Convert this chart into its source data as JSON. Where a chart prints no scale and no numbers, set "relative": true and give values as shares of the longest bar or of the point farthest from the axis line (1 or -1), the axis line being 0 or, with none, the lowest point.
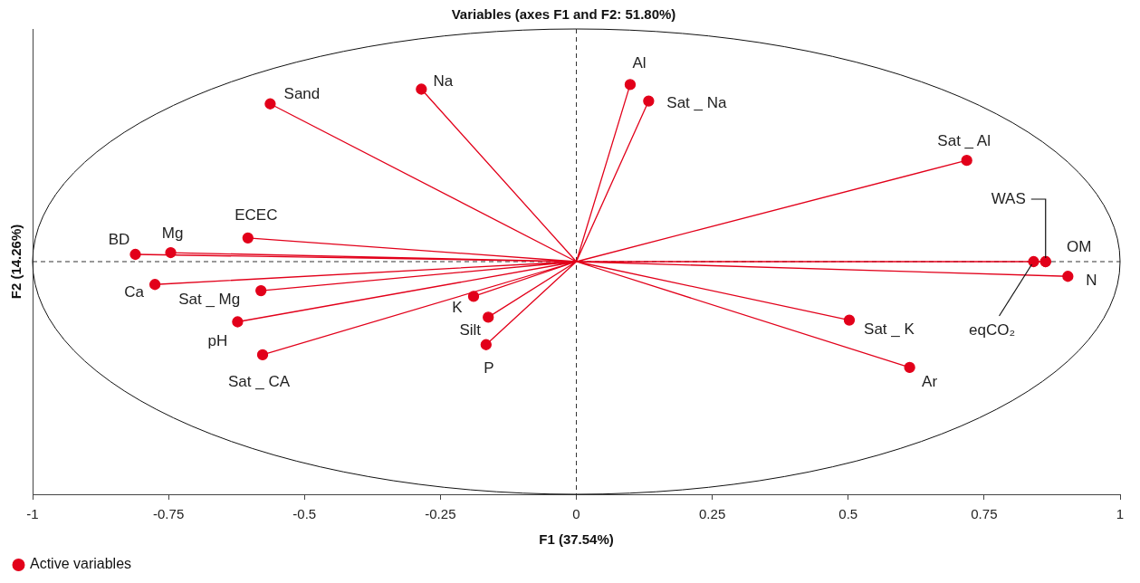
{
  "chart_data": {
    "type": "scatter",
    "title": "Variables (axes F1 and F2: 51.80%)",
    "xlabel": "F1 (37.54%)",
    "ylabel": "F2 (14.26%)",
    "relative": true,
    "series": [
      {
        "name": "Active variables",
        "color": "#e2001a",
        "x": [
          -0.563,
          -0.285,
          0.099,
          0.133,
          0.718,
          0.863,
          0.863,
          0.904,
          0.841,
          0.502,
          0.613,
          -0.166,
          -0.162,
          -0.189,
          -0.577,
          -0.623,
          -0.58,
          -0.775,
          -0.811,
          -0.746,
          -0.604
        ],
        "values": [
          0.891,
          0.974,
          1,
          0.907,
          0.572,
          0.0,
          0.0,
          -0.083,
          0.0,
          -0.33,
          -0.598,
          -0.469,
          -0.314,
          -0.196,
          -0.526,
          -0.34,
          -0.164,
          -0.129,
          0.041,
          0.051,
          0.134
        ]
      },
      {
        "type": "line",
        "marker": "none",
        "color": "#e2001a",
        "x": [
          0,
          -0.563,
          null,
          0,
          -0.285,
          null,
          0,
          0.099,
          null,
          0,
          0.133,
          null,
          0,
          0.718,
          null,
          0,
          0.863,
          null,
          0,
          0.863,
          null,
          0,
          0.904,
          null,
          0,
          0.841,
          null,
          0,
          0.502,
          null,
          0,
          0.613,
          null,
          0,
          -0.166,
          null,
          0,
          -0.162,
          null,
          0,
          -0.189,
          null,
          0,
          -0.577,
          null,
          0,
          -0.623,
          null,
          0,
          -0.58,
          null,
          0,
          -0.775,
          null,
          0,
          -0.811,
          null,
          0,
          -0.746,
          null,
          0,
          -0.604
        ],
        "values": [
          0,
          0.891,
          null,
          0,
          0.974,
          null,
          0,
          1,
          null,
          0,
          0.907,
          null,
          0,
          0.572,
          null,
          0,
          0.0,
          null,
          0,
          0.0,
          null,
          0,
          -0.083,
          null,
          0,
          0.0,
          null,
          0,
          -0.33,
          null,
          0,
          -0.598,
          null,
          0,
          -0.469,
          null,
          0,
          -0.314,
          null,
          0,
          -0.196,
          null,
          0,
          -0.526,
          null,
          0,
          -0.34,
          null,
          0,
          -0.164,
          null,
          0,
          -0.129,
          null,
          0,
          0.041,
          null,
          0,
          0.051,
          null,
          0,
          0.134
        ]
      }
    ],
    "annotations": [
      {
        "text": "Sand",
        "x": -0.563,
        "y": 0.891
      },
      {
        "text": "Na",
        "x": -0.285,
        "y": 0.974
      },
      {
        "text": "Al",
        "x": 0.099,
        "y": 1
      },
      {
        "text": "Sat _ Na",
        "x": 0.133,
        "y": 0.907
      },
      {
        "text": "Sat _ Al",
        "x": 0.718,
        "y": 0.572
      },
      {
        "text": "WAS",
        "x": 0.863,
        "y": 0.0
      },
      {
        "text": "OM",
        "x": 0.863,
        "y": 0.0
      },
      {
        "text": "N",
        "x": 0.904,
        "y": -0.083
      },
      {
        "text": "eqCO₂",
        "x": 0.841,
        "y": 0.0
      },
      {
        "text": "Sat _ K",
        "x": 0.502,
        "y": -0.33
      },
      {
        "text": "Ar",
        "x": 0.613,
        "y": -0.598
      },
      {
        "text": "P",
        "x": -0.166,
        "y": -0.469
      },
      {
        "text": "Silt",
        "x": -0.162,
        "y": -0.314
      },
      {
        "text": "K",
        "x": -0.189,
        "y": -0.196
      },
      {
        "text": "Sat _ CA",
        "x": -0.577,
        "y": -0.526
      },
      {
        "text": "pH",
        "x": -0.623,
        "y": -0.34
      },
      {
        "text": "Sat _ Mg",
        "x": -0.58,
        "y": -0.164
      },
      {
        "text": "Ca",
        "x": -0.775,
        "y": -0.129
      },
      {
        "text": "BD",
        "x": -0.811,
        "y": 0.041
      },
      {
        "text": "Mg",
        "x": -0.746,
        "y": 0.051
      },
      {
        "text": "ECEC",
        "x": -0.604,
        "y": 0.134
      }
    ],
    "xlim": [
      -1,
      1
    ],
    "xticks": [
      -1,
      -0.75,
      -0.5,
      -0.25,
      0,
      0.25,
      0.5,
      0.75,
      1
    ],
    "ref_lines": [
      {
        "axis": "x",
        "value": 0,
        "color": "#333333",
        "line_style": "dashed"
      }
    ],
    "legend": "bottom left",
    "marker": "circle"
  }
}
